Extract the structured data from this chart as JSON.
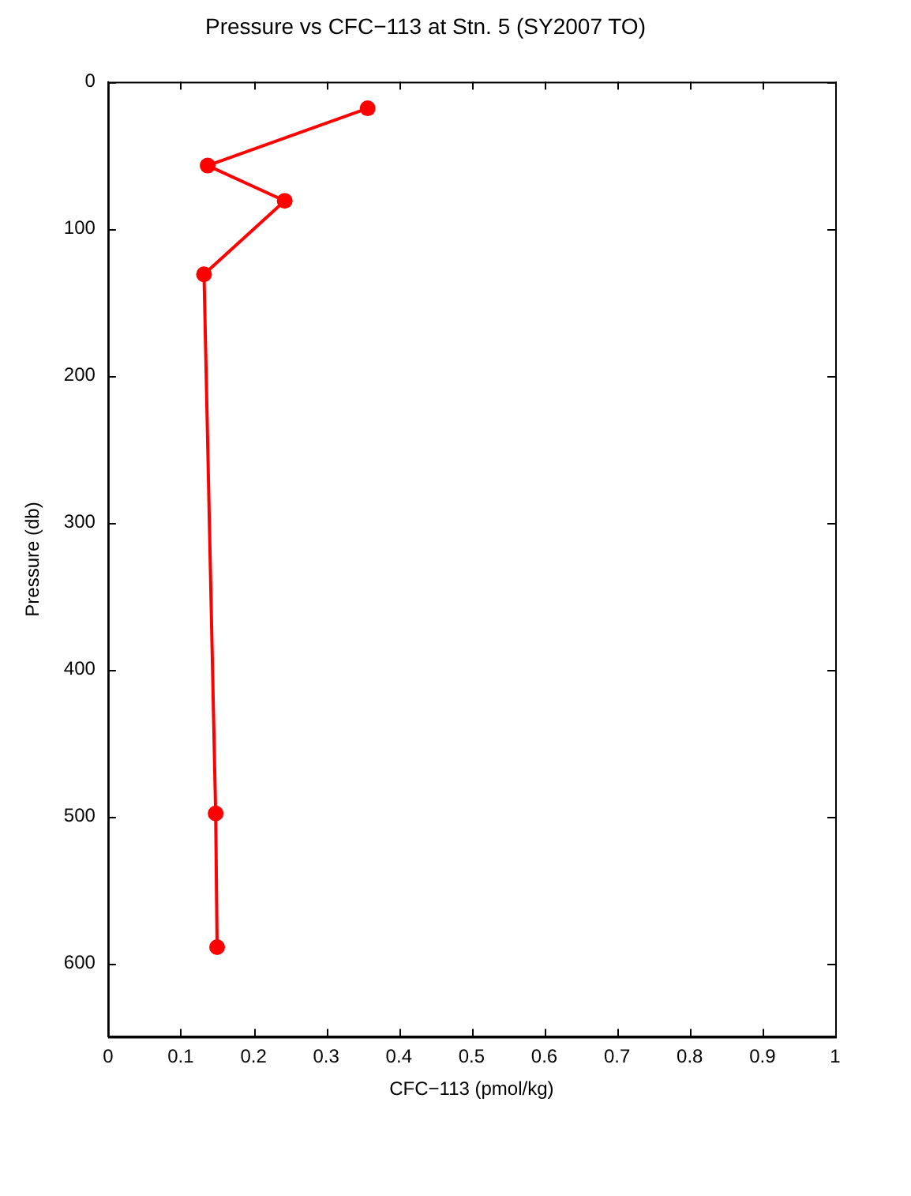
{
  "chart_data": {
    "type": "line",
    "title": "Pressure vs CFC−113 at Stn. 5 (SY2007 TO)",
    "xlabel": "CFC−113 (pmol/kg)",
    "ylabel": "Pressure (db)",
    "x": [
      0.357,
      0.137,
      0.243,
      0.132,
      0.148,
      0.15
    ],
    "series": [
      {
        "color": "#ff0000",
        "values": [
          18,
          57,
          81,
          131,
          498,
          589
        ]
      }
    ],
    "xlim": [
      0,
      1
    ],
    "xticks": [
      0,
      0.1,
      0.2,
      0.3,
      0.4,
      0.5,
      0.6,
      0.7,
      0.8,
      0.9,
      1
    ],
    "ylim": [
      650,
      0
    ],
    "yticks": [
      0,
      100,
      200,
      300,
      400,
      500,
      600
    ],
    "grid": false,
    "legend": false,
    "marker": "circle",
    "line_style": "solid"
  }
}
